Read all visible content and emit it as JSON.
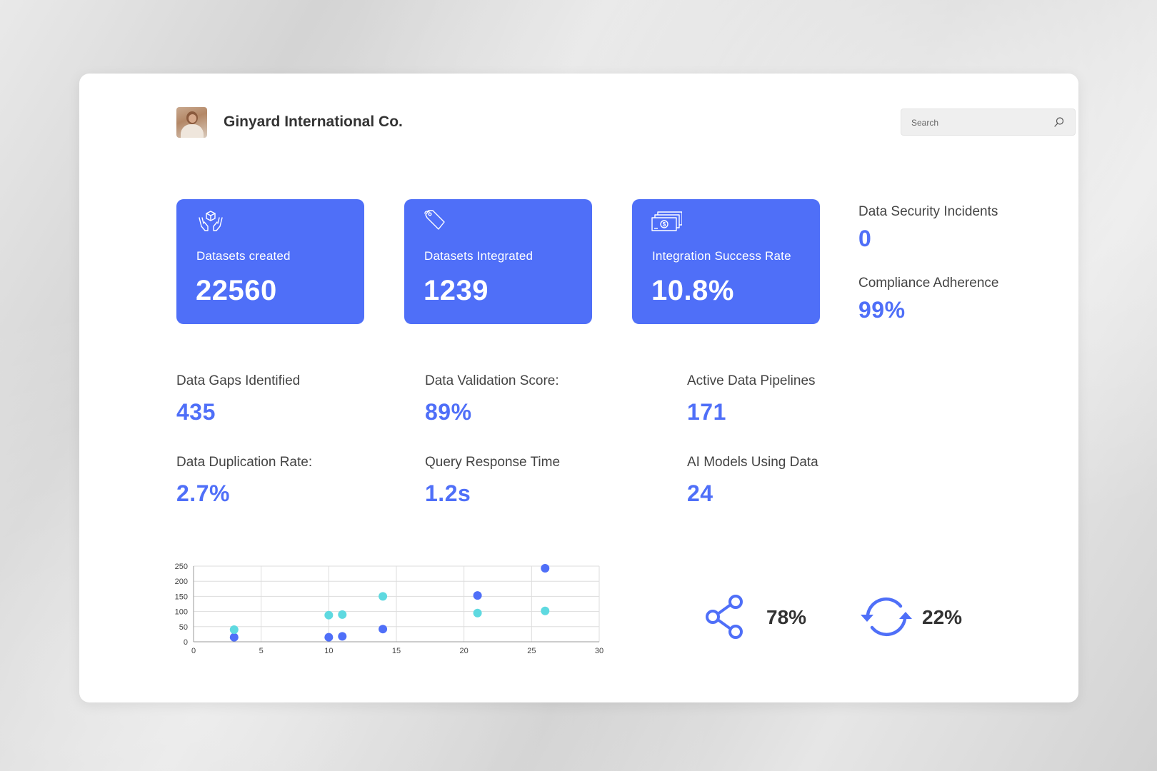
{
  "header": {
    "company_name": "Ginyard International Co.",
    "avatar_alt": "company avatar"
  },
  "search": {
    "placeholder": "Search"
  },
  "tiles": [
    {
      "icon": "dataset-box-hands-icon",
      "label": "Datasets created",
      "value": "22560"
    },
    {
      "icon": "tag-icon",
      "label": "Datasets Integrated",
      "value": "1239"
    },
    {
      "icon": "money-stack-icon",
      "label": "Integration Success Rate",
      "value": "10.8%"
    }
  ],
  "side_metrics": [
    {
      "label": "Data Security Incidents",
      "value": "0"
    },
    {
      "label": "Compliance Adherence",
      "value": "99%"
    }
  ],
  "metrics": [
    {
      "label": "Data Gaps Identified",
      "value": "435"
    },
    {
      "label": "Data Validation Score:",
      "value": "89%"
    },
    {
      "label": "Active Data Pipelines",
      "value": "171"
    },
    {
      "label": "Data Duplication Rate:",
      "value": "2.7%"
    },
    {
      "label": "Query Response Time",
      "value": "1.2s"
    },
    {
      "label": "AI Models Using Data",
      "value": "24"
    }
  ],
  "kpis": [
    {
      "icon": "share-icon",
      "value": "78%"
    },
    {
      "icon": "refresh-icon",
      "value": "22%"
    }
  ],
  "colors": {
    "accent": "#4f6ff8",
    "series_a": "#4f6ff8",
    "series_b": "#5ed9e0",
    "text_dark": "#333333"
  },
  "chart_data": {
    "type": "scatter",
    "title": "",
    "xlabel": "",
    "ylabel": "",
    "xlim": [
      0,
      30
    ],
    "ylim": [
      0,
      250
    ],
    "xticks": [
      0,
      5,
      10,
      15,
      20,
      25,
      30
    ],
    "yticks": [
      0,
      50,
      100,
      150,
      200,
      250
    ],
    "grid": true,
    "series": [
      {
        "color": "#4f6ff8",
        "points": [
          [
            3,
            15
          ],
          [
            10,
            15
          ],
          [
            11,
            18
          ],
          [
            14,
            42
          ],
          [
            21,
            153
          ],
          [
            26,
            243
          ]
        ]
      },
      {
        "color": "#5ed9e0",
        "points": [
          [
            3,
            40
          ],
          [
            10,
            88
          ],
          [
            11,
            90
          ],
          [
            14,
            150
          ],
          [
            21,
            95
          ],
          [
            26,
            102
          ]
        ]
      }
    ]
  }
}
